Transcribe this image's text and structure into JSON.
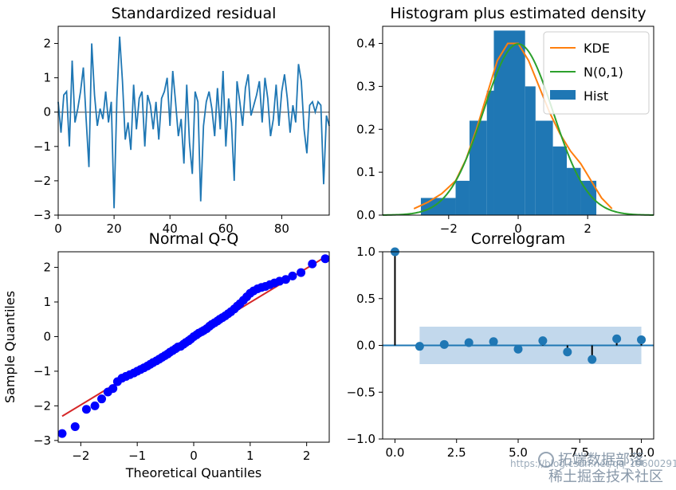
{
  "chart_data": [
    {
      "type": "line",
      "title": "Standardized residual",
      "xlabel": "",
      "ylabel": "",
      "xlim": [
        0,
        97
      ],
      "ylim": [
        -3,
        2.5
      ],
      "xticks": [
        0,
        20,
        40,
        60,
        80
      ],
      "yticks": [
        -3,
        -2,
        -1,
        0,
        1,
        2
      ],
      "xtick_labels": [
        "0",
        "20",
        "40",
        "60",
        "80"
      ],
      "ytick_labels": [
        "−3",
        "−2",
        "−1",
        "0",
        "1",
        "2"
      ],
      "reference_line": 0,
      "color": "#1f77b4",
      "x": [
        0,
        1,
        2,
        3,
        4,
        5,
        6,
        7,
        8,
        9,
        10,
        11,
        12,
        13,
        14,
        15,
        16,
        17,
        18,
        19,
        20,
        21,
        22,
        23,
        24,
        25,
        26,
        27,
        28,
        29,
        30,
        31,
        32,
        33,
        34,
        35,
        36,
        37,
        38,
        39,
        40,
        41,
        42,
        43,
        44,
        45,
        46,
        47,
        48,
        49,
        50,
        51,
        52,
        53,
        54,
        55,
        56,
        57,
        58,
        59,
        60,
        61,
        62,
        63,
        64,
        65,
        66,
        67,
        68,
        69,
        70,
        71,
        72,
        73,
        74,
        75,
        76,
        77,
        78,
        79,
        80,
        81,
        82,
        83,
        84,
        85,
        86,
        87,
        88,
        89,
        90,
        91,
        92,
        93,
        94,
        95,
        96,
        97
      ],
      "y": [
        0.3,
        -0.6,
        0.5,
        0.6,
        -1.0,
        1.5,
        -0.3,
        0.1,
        0.6,
        1.3,
        -0.2,
        -1.6,
        2.0,
        0.5,
        -0.4,
        0.1,
        -0.2,
        0.6,
        -0.3,
        0.3,
        -2.8,
        0.4,
        2.2,
        0.9,
        -0.8,
        -0.3,
        -1.1,
        0.8,
        -0.5,
        0.4,
        0.6,
        -1.0,
        0.5,
        0.2,
        -0.5,
        0.3,
        -0.8,
        0.4,
        0.6,
        1.0,
        -0.4,
        1.2,
        0.3,
        -0.7,
        -0.2,
        -1.5,
        0.8,
        -0.9,
        -1.8,
        0.6,
        0.3,
        -2.6,
        -0.4,
        0.3,
        0.6,
        0.1,
        -0.7,
        0.7,
        -0.5,
        1.2,
        -1.0,
        0.4,
        -0.3,
        -2.0,
        0.9,
        0.3,
        -0.4,
        0.7,
        1.1,
        -0.1,
        0.2,
        0.5,
        0.9,
        -0.3,
        1.0,
        0.4,
        -0.7,
        -0.2,
        0.8,
        -0.4,
        0.6,
        1.1,
        0.4,
        -0.6,
        0.2,
        -0.3,
        1.4,
        0.9,
        -0.5,
        -1.2,
        0.2,
        0.3,
        0.0,
        0.3,
        0.2,
        -2.1,
        -0.1,
        -0.4
      ]
    },
    {
      "type": "histogram",
      "title": "Histogram plus estimated density",
      "xlim": [
        -3.9,
        3.9
      ],
      "ylim": [
        0,
        0.44
      ],
      "xticks": [
        -2,
        0,
        2
      ],
      "yticks": [
        0.0,
        0.1,
        0.2,
        0.3,
        0.4
      ],
      "xtick_labels": [
        "−2",
        "0",
        "2"
      ],
      "ytick_labels": [
        "0.0",
        "0.1",
        "0.2",
        "0.3",
        "0.4"
      ],
      "bins": [
        {
          "x0": -2.8,
          "x1": -1.8,
          "height": 0.04
        },
        {
          "x0": -1.8,
          "x1": -1.4,
          "height": 0.08
        },
        {
          "x0": -1.4,
          "x1": -0.9,
          "height": 0.22
        },
        {
          "x0": -0.9,
          "x1": -0.7,
          "height": 0.29
        },
        {
          "x0": -0.7,
          "x1": 0.2,
          "height": 0.43
        },
        {
          "x0": 0.2,
          "x1": 0.5,
          "height": 0.3
        },
        {
          "x0": 0.5,
          "x1": 1.0,
          "height": 0.22
        },
        {
          "x0": 1.0,
          "x1": 1.4,
          "height": 0.16
        },
        {
          "x0": 1.4,
          "x1": 1.8,
          "height": 0.11
        },
        {
          "x0": 1.8,
          "x1": 2.25,
          "height": 0.08
        }
      ],
      "bar_color": "#1f77b4",
      "kde": {
        "name": "KDE",
        "color": "#ff7f0e",
        "x": [
          -3.0,
          -2.6,
          -2.2,
          -1.8,
          -1.5,
          -1.2,
          -0.9,
          -0.6,
          -0.3,
          0.0,
          0.3,
          0.6,
          0.9,
          1.2,
          1.5,
          1.8,
          2.1,
          2.4,
          2.7
        ],
        "y": [
          0.015,
          0.03,
          0.05,
          0.08,
          0.13,
          0.2,
          0.28,
          0.36,
          0.4,
          0.4,
          0.36,
          0.3,
          0.24,
          0.19,
          0.15,
          0.12,
          0.08,
          0.04,
          0.015
        ]
      },
      "normal": {
        "name": "N(0,1)",
        "color": "#2ca02c",
        "mean": 0,
        "sd": 1
      },
      "legend": [
        "KDE",
        "N(0,1)",
        "Hist"
      ],
      "legend_position": "top-right"
    },
    {
      "type": "scatter",
      "title": "Normal Q-Q",
      "xlabel": "Theoretical Quantiles",
      "ylabel": "Sample Quantiles",
      "xlim": [
        -2.4,
        2.4
      ],
      "ylim": [
        -3.05,
        2.45
      ],
      "xticks": [
        -2,
        -1,
        0,
        1,
        2
      ],
      "yticks": [
        -3,
        -2,
        -1,
        0,
        1,
        2
      ],
      "xtick_labels": [
        "−2",
        "−1",
        "0",
        "1",
        "2"
      ],
      "ytick_labels": [
        "−3",
        "−2",
        "−1",
        "0",
        "1",
        "2"
      ],
      "point_color": "#0000ff",
      "line_color": "#d62728",
      "reference_line": {
        "x": [
          -2.33,
          2.33
        ],
        "y": [
          -2.3,
          2.3
        ]
      },
      "points": {
        "x": [
          -2.33,
          -2.1,
          -1.9,
          -1.75,
          -1.63,
          -1.52,
          -1.43,
          -1.35,
          -1.27,
          -1.2,
          -1.13,
          -1.06,
          -1.0,
          -0.94,
          -0.88,
          -0.82,
          -0.77,
          -0.72,
          -0.66,
          -0.61,
          -0.56,
          -0.51,
          -0.46,
          -0.42,
          -0.37,
          -0.32,
          -0.28,
          -0.23,
          -0.18,
          -0.14,
          -0.09,
          -0.05,
          0.0,
          0.05,
          0.09,
          0.14,
          0.18,
          0.23,
          0.28,
          0.32,
          0.37,
          0.42,
          0.46,
          0.51,
          0.56,
          0.61,
          0.66,
          0.72,
          0.77,
          0.82,
          0.88,
          0.94,
          1.0,
          1.06,
          1.13,
          1.2,
          1.27,
          1.35,
          1.43,
          1.52,
          1.63,
          1.75,
          1.9,
          2.1,
          2.33
        ],
        "y": [
          -2.8,
          -2.6,
          -2.1,
          -2.0,
          -1.8,
          -1.6,
          -1.5,
          -1.3,
          -1.2,
          -1.15,
          -1.1,
          -1.05,
          -1.0,
          -0.95,
          -0.9,
          -0.85,
          -0.8,
          -0.75,
          -0.7,
          -0.65,
          -0.6,
          -0.55,
          -0.5,
          -0.45,
          -0.4,
          -0.35,
          -0.3,
          -0.28,
          -0.22,
          -0.17,
          -0.12,
          -0.07,
          0.0,
          0.05,
          0.1,
          0.14,
          0.18,
          0.23,
          0.3,
          0.35,
          0.4,
          0.45,
          0.5,
          0.55,
          0.6,
          0.66,
          0.72,
          0.8,
          0.88,
          0.95,
          1.05,
          1.15,
          1.25,
          1.32,
          1.38,
          1.42,
          1.45,
          1.5,
          1.55,
          1.6,
          1.65,
          1.75,
          1.85,
          2.1,
          2.25
        ]
      }
    },
    {
      "type": "stem",
      "title": "Correlogram",
      "xlim": [
        -0.5,
        10.5
      ],
      "ylim": [
        -1.0,
        1.0
      ],
      "xticks": [
        0.0,
        2.5,
        5.0,
        7.5,
        10.0
      ],
      "yticks": [
        -1.0,
        -0.5,
        0.0,
        0.5,
        1.0
      ],
      "xtick_labels": [
        "0.0",
        "2.5",
        "5.0",
        "7.5",
        "10.0"
      ],
      "ytick_labels": [
        "−1.0",
        "−0.5",
        "0.0",
        "0.5",
        "1.0"
      ],
      "lags": [
        0,
        1,
        2,
        3,
        4,
        5,
        6,
        7,
        8,
        9,
        10
      ],
      "acf": [
        1.0,
        -0.01,
        0.01,
        0.03,
        0.04,
        -0.04,
        0.05,
        -0.07,
        -0.15,
        0.07,
        0.06
      ],
      "confidence_band": {
        "x0": 1,
        "x1": 10,
        "lower": -0.2,
        "upper": 0.2,
        "color": "#aecbe5"
      },
      "marker_color": "#1f77b4",
      "stem_color": "#000000",
      "zero_line_color": "#1f77b4"
    }
  ],
  "watermark": {
    "main": "拓端数据部落",
    "url": "https://blog.csdn.net/qq_19600291",
    "sub": "稀土掘金技术社区"
  }
}
